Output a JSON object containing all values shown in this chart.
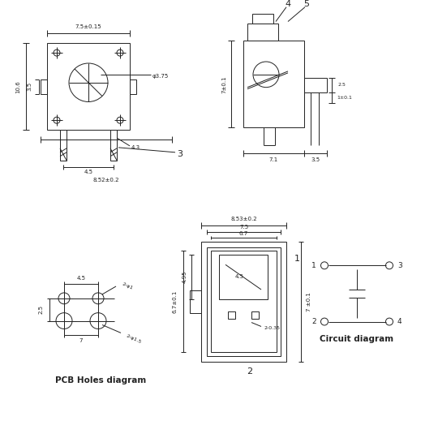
{
  "bg_color": "#ffffff",
  "line_color": "#222222",
  "lw": 0.7,
  "annotations": {
    "front_width_top": "7.5±0.15",
    "front_height_left": "10.6",
    "front_circle": "φ3.75",
    "front_pin_width": "4.5",
    "front_pin_height": "4.3",
    "front_bottom_width": "8.52±0.2",
    "front_lead": "3",
    "front_tab_h": "3.5",
    "side_height": "7±0.1",
    "side_w1": "7.1",
    "side_w2": "3.5",
    "side_dim1": "2.5",
    "side_dim2": "1±0.1",
    "side_label4": "4",
    "side_label5": "5",
    "pcb_dx": "4.5",
    "pcb_dy": "2.5",
    "pcb_total": "7",
    "pcb_hole1": "2-φ1",
    "pcb_hole2": "2-φ1.5",
    "pcb_label": "PCB Holes diagram",
    "bv_top": "8.53±0.2",
    "bv_w1": "7.5",
    "bv_w2": "6.7",
    "bv_inner": "4.5",
    "bv_h1": "6.7±0.1",
    "bv_h2": "4.95",
    "bv_pin": "2-0.35",
    "bv_p1": "1",
    "bv_p2": "2",
    "bv_right_h": "7 ±0.1",
    "circuit_label": "Circuit diagram"
  }
}
